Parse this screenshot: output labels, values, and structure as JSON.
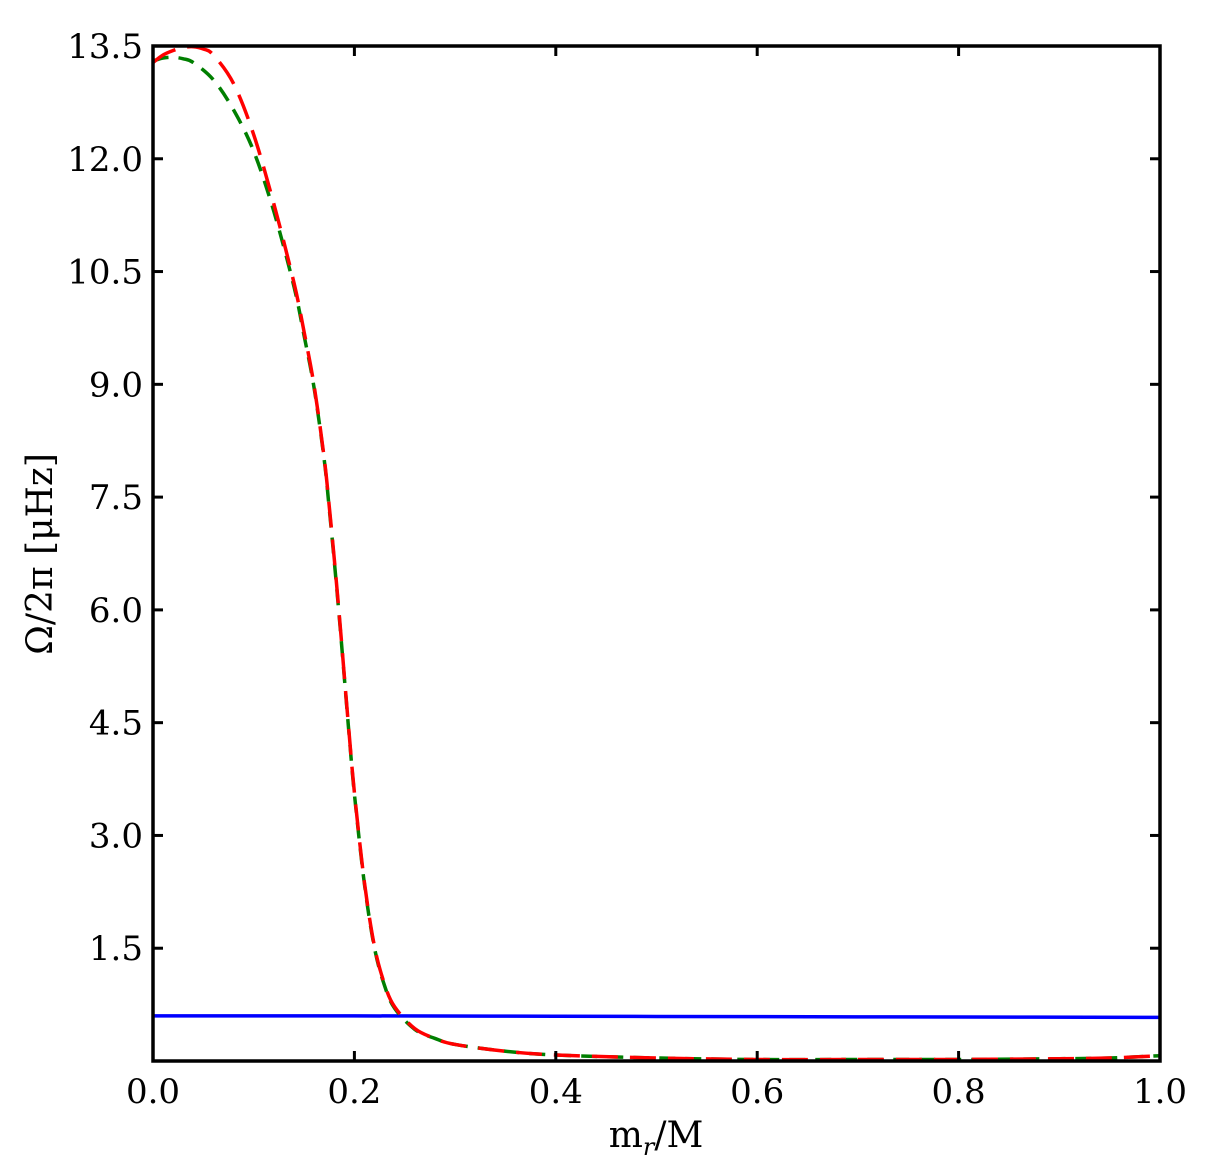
{
  "chart_data": {
    "type": "line",
    "title": "",
    "xlabel": "m_r/M",
    "xlabel_main": "m",
    "xlabel_sub": "r",
    "xlabel_tail": "/M",
    "ylabel": "Ω/2π [μHz]",
    "xlim": [
      0.0,
      1.0
    ],
    "ylim": [
      0.0,
      13.5
    ],
    "xticks": [
      "0.0",
      "0.2",
      "0.4",
      "0.6",
      "0.8",
      "1.0"
    ],
    "yticks": [
      "1.5",
      "3.0",
      "4.5",
      "6.0",
      "7.5",
      "9.0",
      "10.5",
      "12.0",
      "13.5"
    ],
    "grid": false,
    "legend": "none",
    "series": [
      {
        "color": "#0000ff",
        "style": "solid",
        "x": [
          0.0,
          0.2,
          0.4,
          0.6,
          0.8,
          1.0
        ],
        "y": [
          0.6,
          0.6,
          0.595,
          0.59,
          0.585,
          0.58
        ]
      },
      {
        "color": "#007f00",
        "style": "dashed",
        "x": [
          0.0,
          0.01,
          0.02,
          0.03,
          0.04,
          0.06,
          0.08,
          0.1,
          0.12,
          0.14,
          0.15,
          0.16,
          0.17,
          0.175,
          0.18,
          0.185,
          0.19,
          0.195,
          0.2,
          0.21,
          0.22,
          0.23,
          0.24,
          0.26,
          0.28,
          0.3,
          0.35,
          0.4,
          0.5,
          0.6,
          0.7,
          0.8,
          0.9,
          0.95,
          1.0
        ],
        "y": [
          13.3,
          13.34,
          13.35,
          13.33,
          13.28,
          13.05,
          12.65,
          12.1,
          11.3,
          10.3,
          9.65,
          8.95,
          8.0,
          7.35,
          6.65,
          5.9,
          5.1,
          4.3,
          3.55,
          2.35,
          1.5,
          1.0,
          0.7,
          0.42,
          0.3,
          0.22,
          0.13,
          0.08,
          0.04,
          0.02,
          0.02,
          0.02,
          0.03,
          0.04,
          0.07
        ]
      },
      {
        "color": "#ff0000",
        "style": "dashed",
        "x": [
          0.0,
          0.01,
          0.02,
          0.03,
          0.04,
          0.05,
          0.06,
          0.08,
          0.1,
          0.12,
          0.14,
          0.15,
          0.16,
          0.17,
          0.175,
          0.18,
          0.185,
          0.19,
          0.195,
          0.2,
          0.21,
          0.22,
          0.23,
          0.24,
          0.26,
          0.28,
          0.3,
          0.35,
          0.4,
          0.5,
          0.6,
          0.7,
          0.8,
          0.9,
          0.95,
          1.0
        ],
        "y": [
          13.28,
          13.38,
          13.44,
          13.48,
          13.49,
          13.46,
          13.38,
          13.0,
          12.32,
          11.4,
          10.35,
          9.7,
          8.98,
          8.02,
          7.38,
          6.68,
          5.93,
          5.12,
          4.32,
          3.57,
          2.37,
          1.52,
          1.02,
          0.72,
          0.43,
          0.3,
          0.22,
          0.13,
          0.08,
          0.04,
          0.02,
          0.02,
          0.02,
          0.03,
          0.04,
          0.07
        ]
      }
    ]
  }
}
